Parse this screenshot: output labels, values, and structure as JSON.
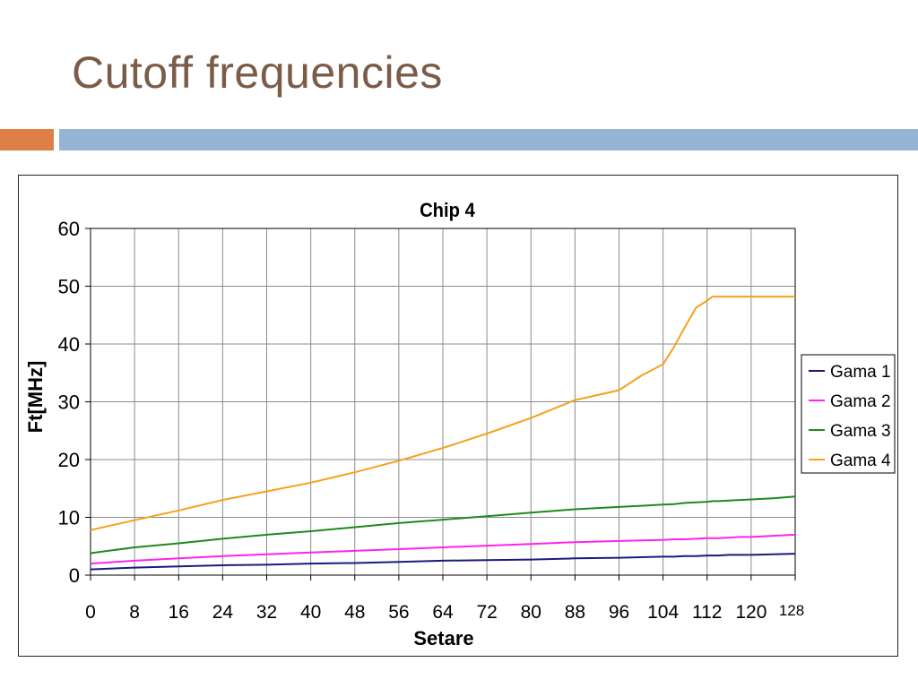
{
  "slide": {
    "title": "Cutoff frequencies"
  },
  "colors": {
    "title": "#7a5c48",
    "accent_orange": "#e07f45",
    "accent_blue": "#93b5d3"
  },
  "chart_data": {
    "type": "line",
    "title": "Chip 4",
    "xlabel": "Setare",
    "ylabel": "Ft[MHz]",
    "xlim": [
      0,
      128
    ],
    "ylim": [
      0,
      60
    ],
    "x_ticks": [
      "0",
      "8",
      "16",
      "24",
      "32",
      "40",
      "48",
      "56",
      "64",
      "72",
      "80",
      "88",
      "96",
      "104",
      "112",
      "120",
      "128"
    ],
    "y_ticks": [
      "0",
      "10",
      "20",
      "30",
      "40",
      "50",
      "60"
    ],
    "grid": true,
    "legend_position": "right",
    "x": [
      0,
      8,
      16,
      24,
      32,
      40,
      48,
      56,
      64,
      72,
      80,
      88,
      96,
      100,
      104,
      106,
      108,
      110,
      112,
      113,
      114,
      116,
      118,
      120,
      124,
      128
    ],
    "series": [
      {
        "name": "Gama 1",
        "color": "#1a1a80",
        "values": [
          1.0,
          1.3,
          1.5,
          1.7,
          1.8,
          2.0,
          2.1,
          2.3,
          2.5,
          2.6,
          2.7,
          2.9,
          3.0,
          3.1,
          3.2,
          3.2,
          3.3,
          3.3,
          3.4,
          3.4,
          3.4,
          3.5,
          3.5,
          3.5,
          3.6,
          3.7
        ]
      },
      {
        "name": "Gama 2",
        "color": "#ff22ee",
        "values": [
          2.0,
          2.5,
          2.9,
          3.3,
          3.6,
          3.9,
          4.2,
          4.5,
          4.8,
          5.1,
          5.4,
          5.7,
          5.9,
          6.0,
          6.1,
          6.2,
          6.2,
          6.3,
          6.4,
          6.4,
          6.4,
          6.5,
          6.6,
          6.6,
          6.8,
          7.0
        ]
      },
      {
        "name": "Gama 3",
        "color": "#1e8a1e",
        "values": [
          3.8,
          4.8,
          5.5,
          6.3,
          7.0,
          7.6,
          8.3,
          9.0,
          9.6,
          10.2,
          10.8,
          11.4,
          11.8,
          12.0,
          12.2,
          12.3,
          12.5,
          12.6,
          12.7,
          12.8,
          12.8,
          12.9,
          13.0,
          13.1,
          13.3,
          13.6
        ]
      },
      {
        "name": "Gama 4",
        "color": "#f5a11a",
        "values": [
          7.8,
          9.5,
          11.2,
          13.0,
          14.5,
          16.0,
          17.8,
          19.8,
          22.0,
          24.5,
          27.2,
          30.3,
          32.0,
          34.5,
          36.5,
          39.5,
          43.0,
          46.3,
          47.5,
          48.2,
          48.2,
          48.2,
          48.2,
          48.2,
          48.2,
          48.2
        ]
      }
    ]
  }
}
